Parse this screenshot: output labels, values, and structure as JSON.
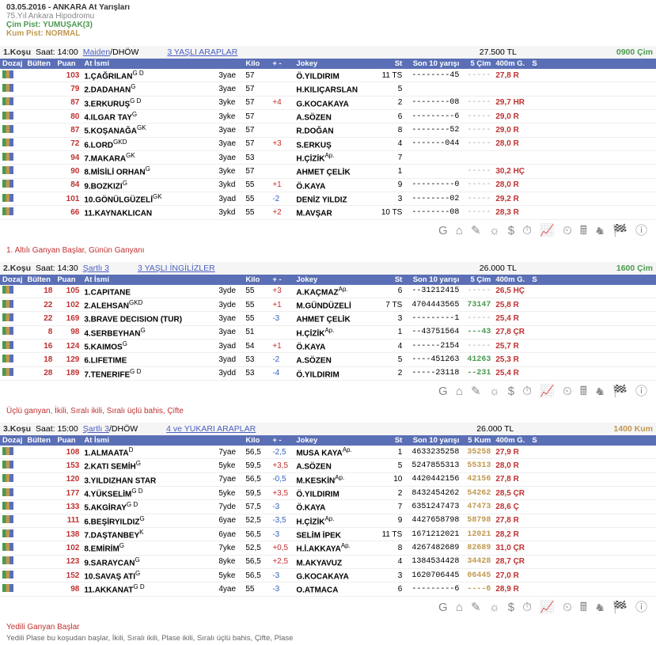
{
  "header": {
    "date": "03.05.2016 - ANKARA At Yarışları",
    "venue": "75.Yıl Ankara Hipodromu",
    "cim_label": "Çim Pist:",
    "cim_val": "YUMUŞAK(3)",
    "kum_label": "Kum Pist:",
    "kum_val": "NORMAL"
  },
  "cols": {
    "doz": "Dozaj",
    "bul": "Bülten",
    "pu": "Puan",
    "at": "At İsmi",
    "ag": "",
    "ki": "Kilo",
    "pm": "+ -",
    "jo": "Jokey",
    "st": "St",
    "s10": "Son 10 yarışı",
    "c5c": "5 Çim",
    "c5k": "5 Kum",
    "g4": "400m G.",
    "s": "S"
  },
  "races": [
    {
      "no": "1.Koşu",
      "time": "Saat: 14:00",
      "t1": "Maiden",
      "t1s": "/DHÖW",
      "t2": "3 YAŞLI ARAPLAR",
      "prize": "27.500 TL",
      "dist": "0900 Çim",
      "dcls": "dist-cim",
      "c5": "c5c",
      "ft": "1. Altılı Ganyan Başlar, Günün Ganyanı",
      "ft2": "",
      "rows": [
        {
          "bul": "",
          "pu": "103",
          "at": "1.ÇAĞRILAN",
          "sup": "G D",
          "ag": "3yae",
          "ki": "57",
          "pm": "",
          "jo": "Ö.YILDIRIM",
          "js": "",
          "st": "11 TS",
          "s10": "--------45",
          "c5": "-----",
          "g4": "27,8 R"
        },
        {
          "bul": "",
          "pu": "79",
          "at": "2.DADAHAN",
          "sup": "G",
          "ag": "3yae",
          "ki": "57",
          "pm": "",
          "jo": "H.KILIÇARSLAN",
          "js": "",
          "st": "5",
          "s10": "",
          "c5": "",
          "g4": ""
        },
        {
          "bul": "",
          "pu": "87",
          "at": "3.ERKURUŞ",
          "sup": "G D",
          "ag": "3yke",
          "ki": "57",
          "pm": "+4",
          "jo": "G.KOCAKAYA",
          "js": "",
          "st": "2",
          "s10": "--------08",
          "c5": "-----",
          "g4": "29,7 HR"
        },
        {
          "bul": "",
          "pu": "80",
          "at": "4.ILGAR TAY",
          "sup": "G",
          "ag": "3yke",
          "ki": "57",
          "pm": "",
          "jo": "A.SÖZEN",
          "js": "",
          "st": "6",
          "s10": "---------6",
          "c5": "-----",
          "g4": "29,0 R"
        },
        {
          "bul": "",
          "pu": "87",
          "at": "5.KOŞANAĞA",
          "sup": "GK",
          "ag": "3yae",
          "ki": "57",
          "pm": "",
          "jo": "R.DOĞAN",
          "js": "",
          "st": "8",
          "s10": "--------52",
          "c5": "-----",
          "g4": "29,0 R"
        },
        {
          "bul": "",
          "pu": "72",
          "at": "6.LORD",
          "sup": "GKD",
          "ag": "3yae",
          "ki": "57",
          "pm": "+3",
          "jo": "S.ERKUŞ",
          "js": "",
          "st": "4",
          "s10": "-------044",
          "c5": "-----",
          "g4": "28,0 R"
        },
        {
          "bul": "",
          "pu": "94",
          "at": "7.MAKARA",
          "sup": "GK",
          "ag": "3yae",
          "ki": "53",
          "pm": "",
          "jo": "H.ÇİZİK",
          "js": "Ap.",
          "st": "7",
          "s10": "",
          "c5": "",
          "g4": ""
        },
        {
          "bul": "",
          "pu": "90",
          "at": "8.MİSİLİ ORHAN",
          "sup": "G",
          "ag": "3yke",
          "ki": "57",
          "pm": "",
          "jo": "AHMET ÇELİK",
          "js": "",
          "st": "1",
          "s10": "",
          "c5": "-----",
          "g4": "30,2 HÇ"
        },
        {
          "bul": "",
          "pu": "84",
          "at": "9.BOZKIZI",
          "sup": "G",
          "ag": "3ykd",
          "ki": "55",
          "pm": "+1",
          "jo": "Ö.KAYA",
          "js": "",
          "st": "9",
          "s10": "---------0",
          "c5": "-----",
          "g4": "28,0 R"
        },
        {
          "bul": "",
          "pu": "101",
          "at": "10.GÖNÜLGÜZELİ",
          "sup": "GK",
          "ag": "3yad",
          "ki": "55",
          "pm": "-2",
          "jo": "DENİZ YILDIZ",
          "js": "",
          "st": "3",
          "s10": "--------02",
          "c5": "-----",
          "g4": "29,2 R"
        },
        {
          "bul": "",
          "pu": "66",
          "at": "11.KAYNAKLICAN",
          "sup": "",
          "ag": "3ykd",
          "ki": "55",
          "pm": "+2",
          "jo": "M.AVŞAR",
          "js": "",
          "st": "10 TS",
          "s10": "--------08",
          "c5": "-----",
          "g4": "28,3 R"
        }
      ]
    },
    {
      "no": "2.Koşu",
      "time": "Saat: 14:30",
      "t1": "Şartlı 3",
      "t1s": "",
      "t2": "3 YAŞLI İNGİLİZLER",
      "prize": "26.000 TL",
      "dist": "1600 Çim",
      "dcls": "dist-cim",
      "c5": "c5c",
      "ft": "Üçlü ganyan, İkili, Sıralı ikili, Sıralı üçlü bahis, Çifte",
      "ft2": "",
      "rows": [
        {
          "bul": "18",
          "pu": "105",
          "at": "1.CAPITANE",
          "sup": "",
          "ag": "3yde",
          "ki": "55",
          "pm": "+3",
          "jo": "A.KAÇMAZ",
          "js": "Ap.",
          "st": "6",
          "s10": "--31212415",
          "c5": "-----",
          "g4": "26,5 HÇ"
        },
        {
          "bul": "22",
          "pu": "102",
          "at": "2.ALEHSAN",
          "sup": "GKD",
          "ag": "3yde",
          "ki": "55",
          "pm": "+1",
          "jo": "M.GÜNDÜZELİ",
          "js": "",
          "st": "7 TS",
          "s10": "4704443565",
          "c5": "73147",
          "g4": "25,8 R"
        },
        {
          "bul": "22",
          "pu": "169",
          "at": "3.BRAVE DECISION (TUR)",
          "sup": "",
          "ag": "3yae",
          "ki": "55",
          "pm": "-3",
          "jo": "AHMET ÇELİK",
          "js": "",
          "st": "3",
          "s10": "---------1",
          "c5": "-----",
          "g4": "25,4 R"
        },
        {
          "bul": "8",
          "pu": "98",
          "at": "4.SERBEYHAN",
          "sup": "G",
          "ag": "3yae",
          "ki": "51",
          "pm": "",
          "jo": "H.ÇİZİK",
          "js": "Ap.",
          "st": "1",
          "s10": "--43751564",
          "c5": "---43",
          "g4": "27,8 ÇR"
        },
        {
          "bul": "16",
          "pu": "124",
          "at": "5.KAIMOS",
          "sup": "G",
          "ag": "3yad",
          "ki": "54",
          "pm": "+1",
          "jo": "Ö.KAYA",
          "js": "",
          "st": "4",
          "s10": "------2154",
          "c5": "-----",
          "g4": "25,7 R"
        },
        {
          "bul": "18",
          "pu": "129",
          "at": "6.LIFETIME",
          "sup": "",
          "ag": "3yad",
          "ki": "53",
          "pm": "-2",
          "jo": "A.SÖZEN",
          "js": "",
          "st": "5",
          "s10": "----451263",
          "c5": "41263",
          "g4": "25,3 R"
        },
        {
          "bul": "28",
          "pu": "189",
          "at": "7.TENERIFE",
          "sup": "G D",
          "ag": "3ydd",
          "ki": "53",
          "pm": "-4",
          "jo": "Ö.YILDIRIM",
          "js": "",
          "st": "2",
          "s10": "-----23118",
          "c5": "--231",
          "g4": "25,4 R"
        }
      ]
    },
    {
      "no": "3.Koşu",
      "time": "Saat: 15:00",
      "t1": "Şartlı 3",
      "t1s": "/DHÖW",
      "t2": "4 ve YUKARI ARAPLAR",
      "prize": "26.000 TL",
      "dist": "1400 Kum",
      "dcls": "dist-kum",
      "c5": "c5k",
      "ft": "Yedili Ganyan Başlar",
      "ft2": "Yedili Plase bu koşudan başlar, İkili, Sıralı ikili, Plase ikili, Sıralı üçlü bahis, Çifte, Plase",
      "rows": [
        {
          "bul": "",
          "pu": "108",
          "at": "1.ALMAATA",
          "sup": "D",
          "ag": "7yae",
          "ki": "56,5",
          "pm": "-2,5",
          "jo": "MUSA KAYA",
          "js": "Ap.",
          "st": "1",
          "s10": "4633235258",
          "c5": "35258",
          "g4": "27,9 R"
        },
        {
          "bul": "",
          "pu": "153",
          "at": "2.KATI SEMİH",
          "sup": "G",
          "ag": "5yke",
          "ki": "59,5",
          "pm": "+3,5",
          "jo": "A.SÖZEN",
          "js": "",
          "st": "5",
          "s10": "5247855313",
          "c5": "55313",
          "g4": "28,0 R"
        },
        {
          "bul": "",
          "pu": "120",
          "at": "3.YILDIZHAN STAR",
          "sup": "",
          "ag": "7yae",
          "ki": "56,5",
          "pm": "-0,5",
          "jo": "M.KESKİN",
          "js": "Ap.",
          "st": "10",
          "s10": "4420442156",
          "c5": "42156",
          "g4": "27,8 R"
        },
        {
          "bul": "",
          "pu": "177",
          "at": "4.YÜKSELİM",
          "sup": "G D",
          "ag": "5yke",
          "ki": "59,5",
          "pm": "+3,5",
          "jo": "Ö.YILDIRIM",
          "js": "",
          "st": "2",
          "s10": "8432454262",
          "c5": "54262",
          "g4": "28,5 ÇR"
        },
        {
          "bul": "",
          "pu": "133",
          "at": "5.AKGİRAY",
          "sup": "G D",
          "ag": "7yde",
          "ki": "57,5",
          "pm": "-3",
          "jo": "Ö.KAYA",
          "js": "",
          "st": "7",
          "s10": "6351247473",
          "c5": "47473",
          "g4": "28,6 Ç"
        },
        {
          "bul": "",
          "pu": "111",
          "at": "6.BEŞİRYILDIZ",
          "sup": "G",
          "ag": "6yae",
          "ki": "52,5",
          "pm": "-3,5",
          "jo": "H.ÇİZİK",
          "js": "Ap.",
          "st": "9",
          "s10": "4427658798",
          "c5": "58798",
          "g4": "27,8 R"
        },
        {
          "bul": "",
          "pu": "138",
          "at": "7.DAŞTANBEY",
          "sup": "K",
          "ag": "6yae",
          "ki": "56,5",
          "pm": "-3",
          "jo": "SELİM İPEK",
          "js": "",
          "st": "11 TS",
          "s10": "1671212021",
          "c5": "12021",
          "g4": "28,2 R"
        },
        {
          "bul": "",
          "pu": "102",
          "at": "8.EMİRİM",
          "sup": "G",
          "ag": "7yke",
          "ki": "52,5",
          "pm": "+0,5",
          "jo": "H.İ.AKKAYA",
          "js": "Ap.",
          "st": "8",
          "s10": "4267482689",
          "c5": "82689",
          "g4": "31,0 ÇR"
        },
        {
          "bul": "",
          "pu": "123",
          "at": "9.SARAYCAN",
          "sup": "G",
          "ag": "8yke",
          "ki": "56,5",
          "pm": "+2,5",
          "jo": "M.AKYAVUZ",
          "js": "",
          "st": "4",
          "s10": "1384534428",
          "c5": "34428",
          "g4": "28,7 ÇR"
        },
        {
          "bul": "",
          "pu": "152",
          "at": "10.SAVAŞ ATI",
          "sup": "G",
          "ag": "5yke",
          "ki": "56,5",
          "pm": "-3",
          "jo": "G.KOCAKAYA",
          "js": "",
          "st": "3",
          "s10": "1620706445",
          "c5": "06445",
          "g4": "27,0 R"
        },
        {
          "bul": "",
          "pu": "98",
          "at": "11.AKKANAT",
          "sup": "G D",
          "ag": "4yae",
          "ki": "55",
          "pm": "-3",
          "jo": "O.ATMACA",
          "js": "",
          "st": "6",
          "s10": "---------6",
          "c5": "----6",
          "g4": "28,9 R"
        }
      ]
    }
  ],
  "icons": "G ⌂ ✎ ☼ $ ⏱ 📈 ⏲ 🖩 ♞ 🏁 ⓘ"
}
